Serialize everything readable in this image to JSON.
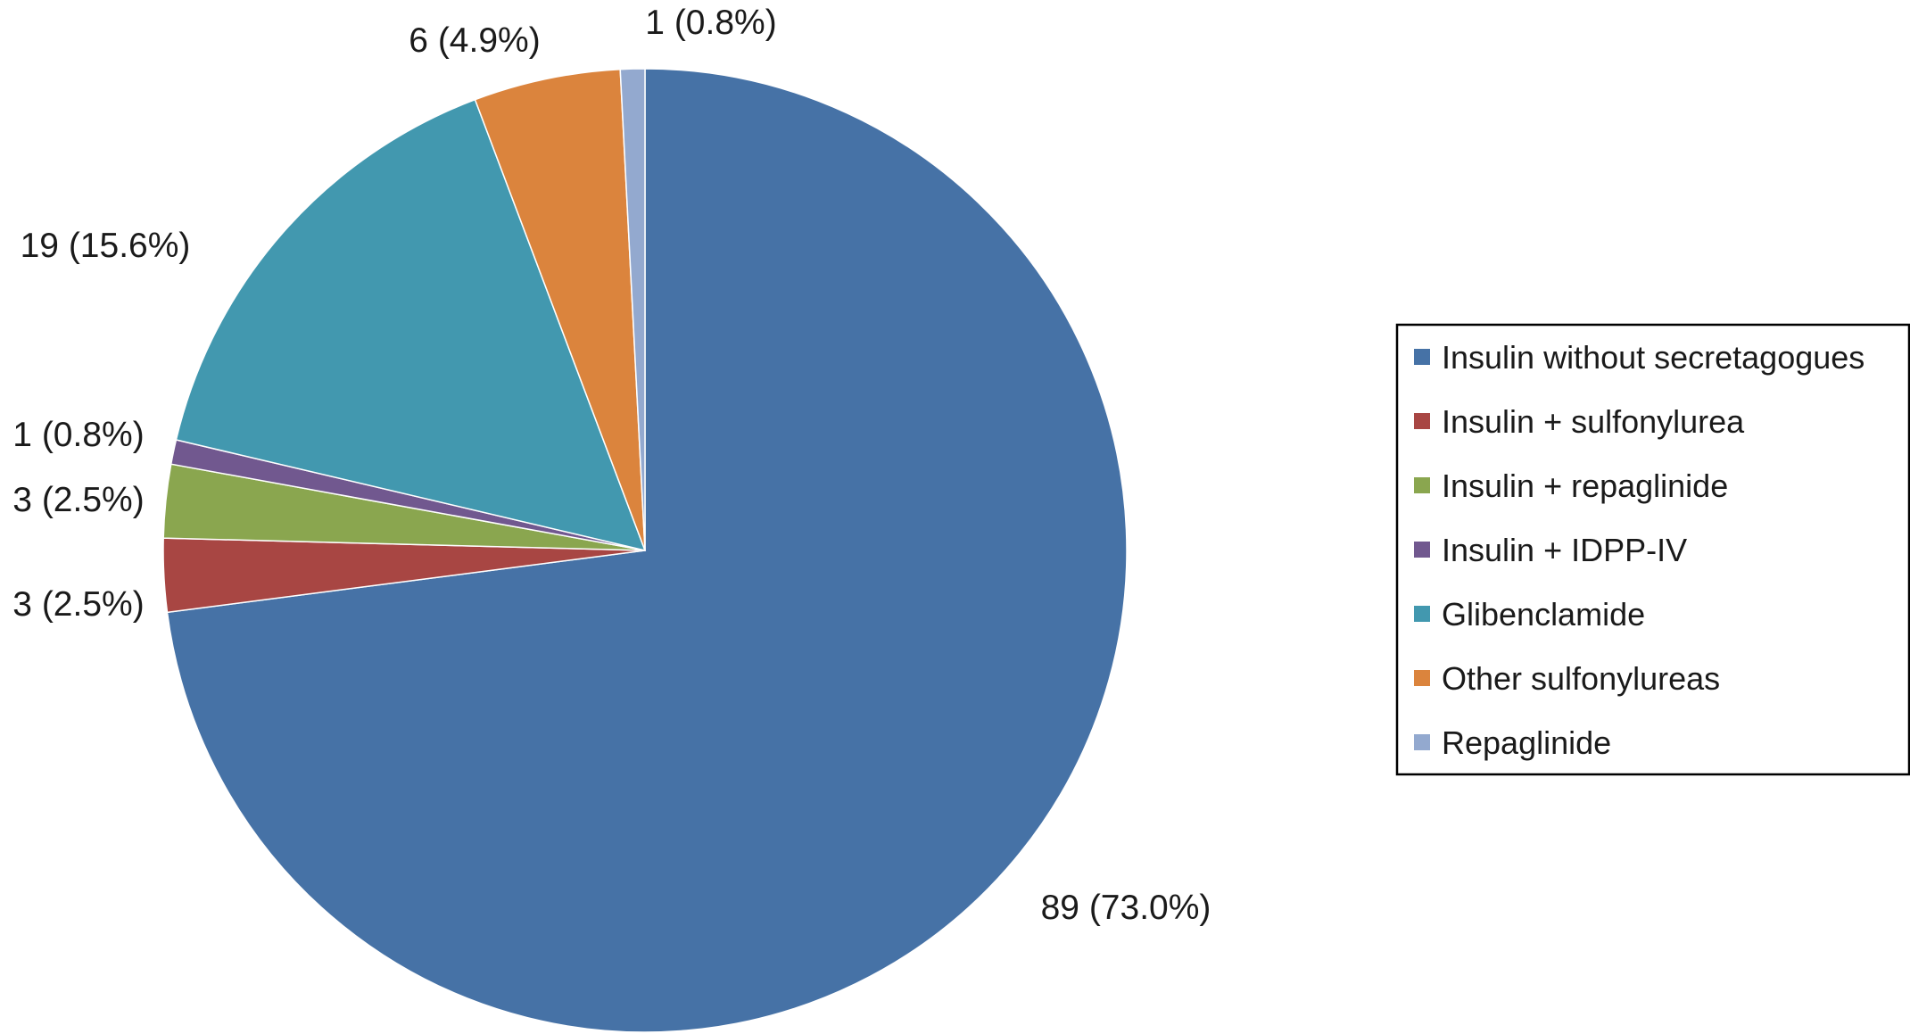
{
  "chart_data": {
    "type": "pie",
    "title": "",
    "legend_position": "right",
    "slices": [
      {
        "label": "Insulin without secretagogues",
        "value": 89,
        "percent": "73.0%",
        "data_label": "89 (73.0%)",
        "color": "#4672a6"
      },
      {
        "label": "Insulin + sulfonylurea",
        "value": 3,
        "percent": "2.5%",
        "data_label": "3 (2.5%)",
        "color": "#a84643"
      },
      {
        "label": "Insulin + repaglinide",
        "value": 3,
        "percent": "2.5%",
        "data_label": "3 (2.5%)",
        "color": "#8aa64f"
      },
      {
        "label": "Insulin + IDPP-IV",
        "value": 1,
        "percent": "0.8%",
        "data_label": "1 (0.8%)",
        "color": "#71588f"
      },
      {
        "label": "Glibenclamide",
        "value": 19,
        "percent": "15.6%",
        "data_label": "19 (15.6%)",
        "color": "#4298af"
      },
      {
        "label": "Other sulfonylureas",
        "value": 6,
        "percent": "4.9%",
        "data_label": "6 (4.9%)",
        "color": "#db843d"
      },
      {
        "label": "Repaglinide",
        "value": 1,
        "percent": "0.8%",
        "data_label": "1 (0.8%)",
        "color": "#93a9cf"
      }
    ]
  }
}
